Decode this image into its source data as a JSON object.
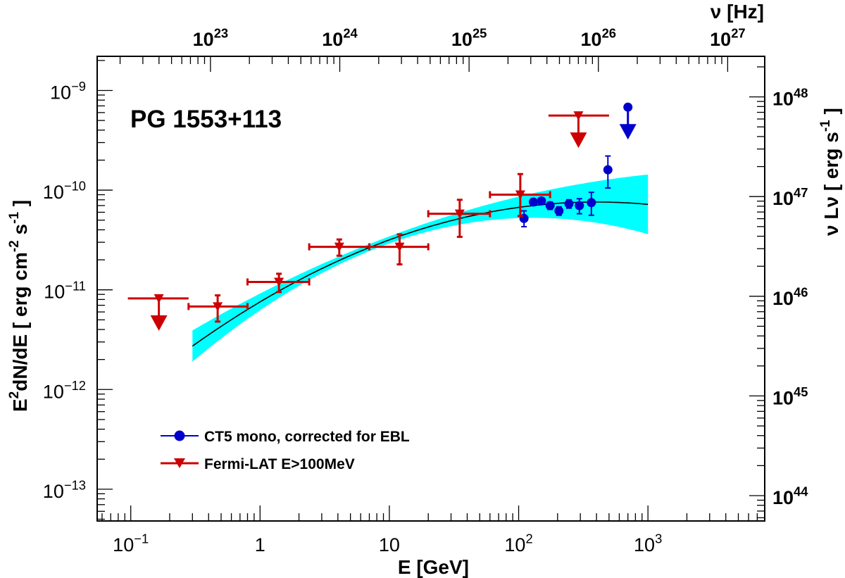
{
  "chart_data": {
    "type": "scatter",
    "title": "PG 1553+113",
    "xlabel": "E [GeV]",
    "ylabel": "E^2dN/dE [ erg cm^-2 s^-1 ]",
    "ylabel_parts": {
      "main": "E",
      "sup1": "2",
      "mid": "dN/dE [ erg cm",
      "sup2": "-2",
      "mid2": " s",
      "sup3": "-1",
      "end": " ]"
    },
    "top_axis_label": "ν [Hz]",
    "right_axis_label": "ν Lν [ erg s^-1 ]",
    "right_axis_label_parts": {
      "main": "ν Lν [ erg s",
      "sup": "-1",
      "end": " ]"
    },
    "x_scale": "log",
    "y_scale": "log",
    "xlim": [
      0.055,
      8000
    ],
    "ylim": [
      4.8e-14,
      2.2e-09
    ],
    "x_ticks": [
      {
        "value": 0.1,
        "base": "10",
        "exp": "−1"
      },
      {
        "value": 1,
        "base": "1",
        "exp": ""
      },
      {
        "value": 10,
        "base": "10",
        "exp": ""
      },
      {
        "value": 100,
        "base": "10",
        "exp": "2"
      },
      {
        "value": 1000,
        "base": "10",
        "exp": "3"
      }
    ],
    "y_ticks": [
      {
        "value": 1e-13,
        "base": "10",
        "exp": "−13"
      },
      {
        "value": 1e-12,
        "base": "10",
        "exp": "−12"
      },
      {
        "value": 1e-11,
        "base": "10",
        "exp": "−11"
      },
      {
        "value": 1e-10,
        "base": "10",
        "exp": "−10"
      },
      {
        "value": 1e-09,
        "base": "10",
        "exp": "−9"
      }
    ],
    "top_ticks": [
      {
        "value": 1e+23,
        "base": "10",
        "exp": "23"
      },
      {
        "value": 1e+24,
        "base": "10",
        "exp": "24"
      },
      {
        "value": 1e+25,
        "base": "10",
        "exp": "25"
      },
      {
        "value": 1e+26,
        "base": "10",
        "exp": "26"
      },
      {
        "value": 1e+27,
        "base": "10",
        "exp": "27"
      }
    ],
    "gev_to_hz": 2.418e+23,
    "right_ticks": [
      {
        "value": 1e+44,
        "base": "10",
        "exp": "44"
      },
      {
        "value": 1e+45,
        "base": "10",
        "exp": "45"
      },
      {
        "value": 1e+46,
        "base": "10",
        "exp": "46"
      },
      {
        "value": 1e+47,
        "base": "10",
        "exp": "47"
      },
      {
        "value": 1e+48,
        "base": "10",
        "exp": "48"
      }
    ],
    "flux_to_lum": 1.16e+57,
    "model_fit": {
      "type": "log-parabola",
      "e_min": 0.3,
      "e_max": 1000,
      "peak_energy": 400,
      "peak_flux": 7.6e-11,
      "curvature": 0.148,
      "band_color": "#00ffff",
      "line_color": "#000000"
    },
    "series": [
      {
        "name": "CT5 mono, corrected for EBL",
        "color": "#0000cc",
        "marker": "circle",
        "points": [
          {
            "x": 110,
            "y": 5.2e-11,
            "ylo": 4.3e-11,
            "yhi": 6.2e-11
          },
          {
            "x": 130,
            "y": 7.6e-11,
            "ylo": 7e-11,
            "yhi": 8.2e-11
          },
          {
            "x": 150,
            "y": 7.8e-11,
            "ylo": 7.2e-11,
            "yhi": 8.4e-11
          },
          {
            "x": 175,
            "y": 7e-11,
            "ylo": 6.4e-11,
            "yhi": 7.6e-11
          },
          {
            "x": 205,
            "y": 6.2e-11,
            "ylo": 5.6e-11,
            "yhi": 6.8e-11
          },
          {
            "x": 245,
            "y": 7.3e-11,
            "ylo": 6.6e-11,
            "yhi": 8e-11
          },
          {
            "x": 295,
            "y": 7e-11,
            "ylo": 5.8e-11,
            "yhi": 8.2e-11
          },
          {
            "x": 365,
            "y": 7.5e-11,
            "ylo": 5.6e-11,
            "yhi": 9.5e-11
          },
          {
            "x": 490,
            "y": 1.6e-10,
            "ylo": 1.05e-10,
            "yhi": 2.2e-10
          }
        ],
        "upper_limits": [
          {
            "x": 700,
            "y": 6.8e-10
          }
        ]
      },
      {
        "name": "Fermi-LAT E>100MeV",
        "color": "#cc0000",
        "marker": "triangle-down",
        "points": [
          {
            "x": 0.47,
            "y": 6.8e-12,
            "xlo": 0.28,
            "xhi": 0.8,
            "ylo": 4.8e-12,
            "yhi": 8.8e-12
          },
          {
            "x": 1.4,
            "y": 1.2e-11,
            "xlo": 0.8,
            "xhi": 2.4,
            "ylo": 9.5e-12,
            "yhi": 1.45e-11
          },
          {
            "x": 4.1,
            "y": 2.7e-11,
            "xlo": 2.4,
            "xhi": 7.0,
            "ylo": 2.2e-11,
            "yhi": 3.2e-11
          },
          {
            "x": 12,
            "y": 2.7e-11,
            "xlo": 7.0,
            "xhi": 20,
            "ylo": 1.8e-11,
            "yhi": 3.6e-11
          },
          {
            "x": 35,
            "y": 5.8e-11,
            "xlo": 20,
            "xhi": 60,
            "ylo": 3.4e-11,
            "yhi": 8e-11
          },
          {
            "x": 103,
            "y": 9e-11,
            "xlo": 60,
            "xhi": 175,
            "ylo": 5.5e-11,
            "yhi": 1.45e-10
          }
        ],
        "upper_limits": [
          {
            "x": 0.165,
            "y": 8.2e-12,
            "xlo": 0.095,
            "xhi": 0.28
          },
          {
            "x": 290,
            "y": 5.6e-10,
            "xlo": 170,
            "xhi": 500
          }
        ]
      }
    ],
    "legend_position": "bottom-left"
  }
}
